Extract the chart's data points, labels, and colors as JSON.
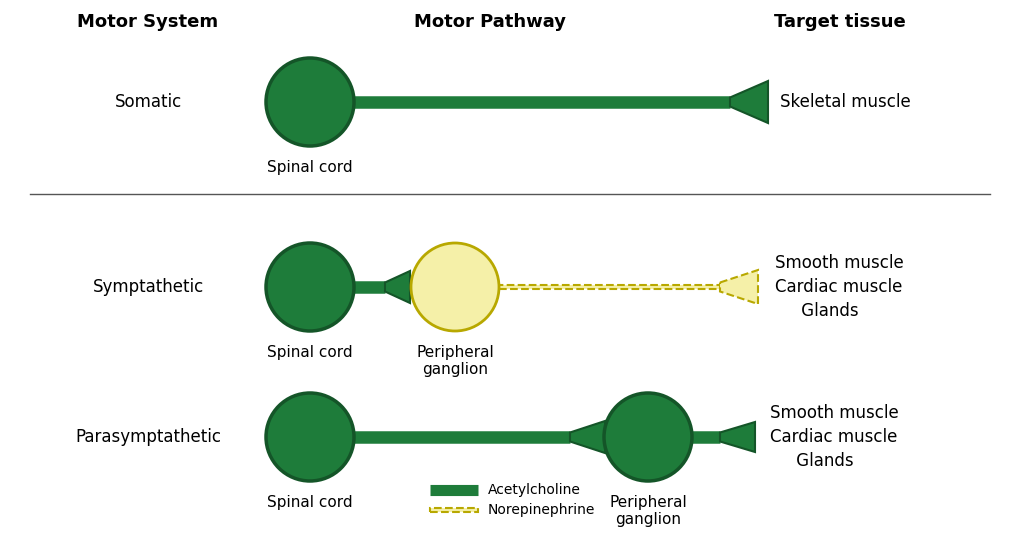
{
  "bg_color": "#ffffff",
  "green": "#1e7c3a",
  "green_edge": "#145528",
  "yellow_fill": "#f5f0a8",
  "yellow_border": "#b8a800",
  "header_motor_system": "Motor System",
  "header_motor_pathway": "Motor Pathway",
  "header_target_tissue": "Target tissue",
  "row1_label": "Somatic",
  "row1_spinal": "Spinal cord",
  "row1_target": "Skeletal muscle",
  "row2_label": "Symptathetic",
  "row2_spinal": "Spinal cord",
  "row2_ganglion": "Peripheral\nganglion",
  "row2_target": "Smooth muscle\nCardiac muscle\n     Glands",
  "row3_label": "Parasymptathetic",
  "row3_spinal": "Spinal cord",
  "row3_ganglion": "Peripheral\nganglion",
  "row3_target": "Smooth muscle\nCardiac muscle\n     Glands",
  "legend_ach": "Acetylcholine",
  "legend_norepi": "Norepinephrine",
  "title_fontsize": 13,
  "label_fontsize": 12,
  "small_fontsize": 11
}
